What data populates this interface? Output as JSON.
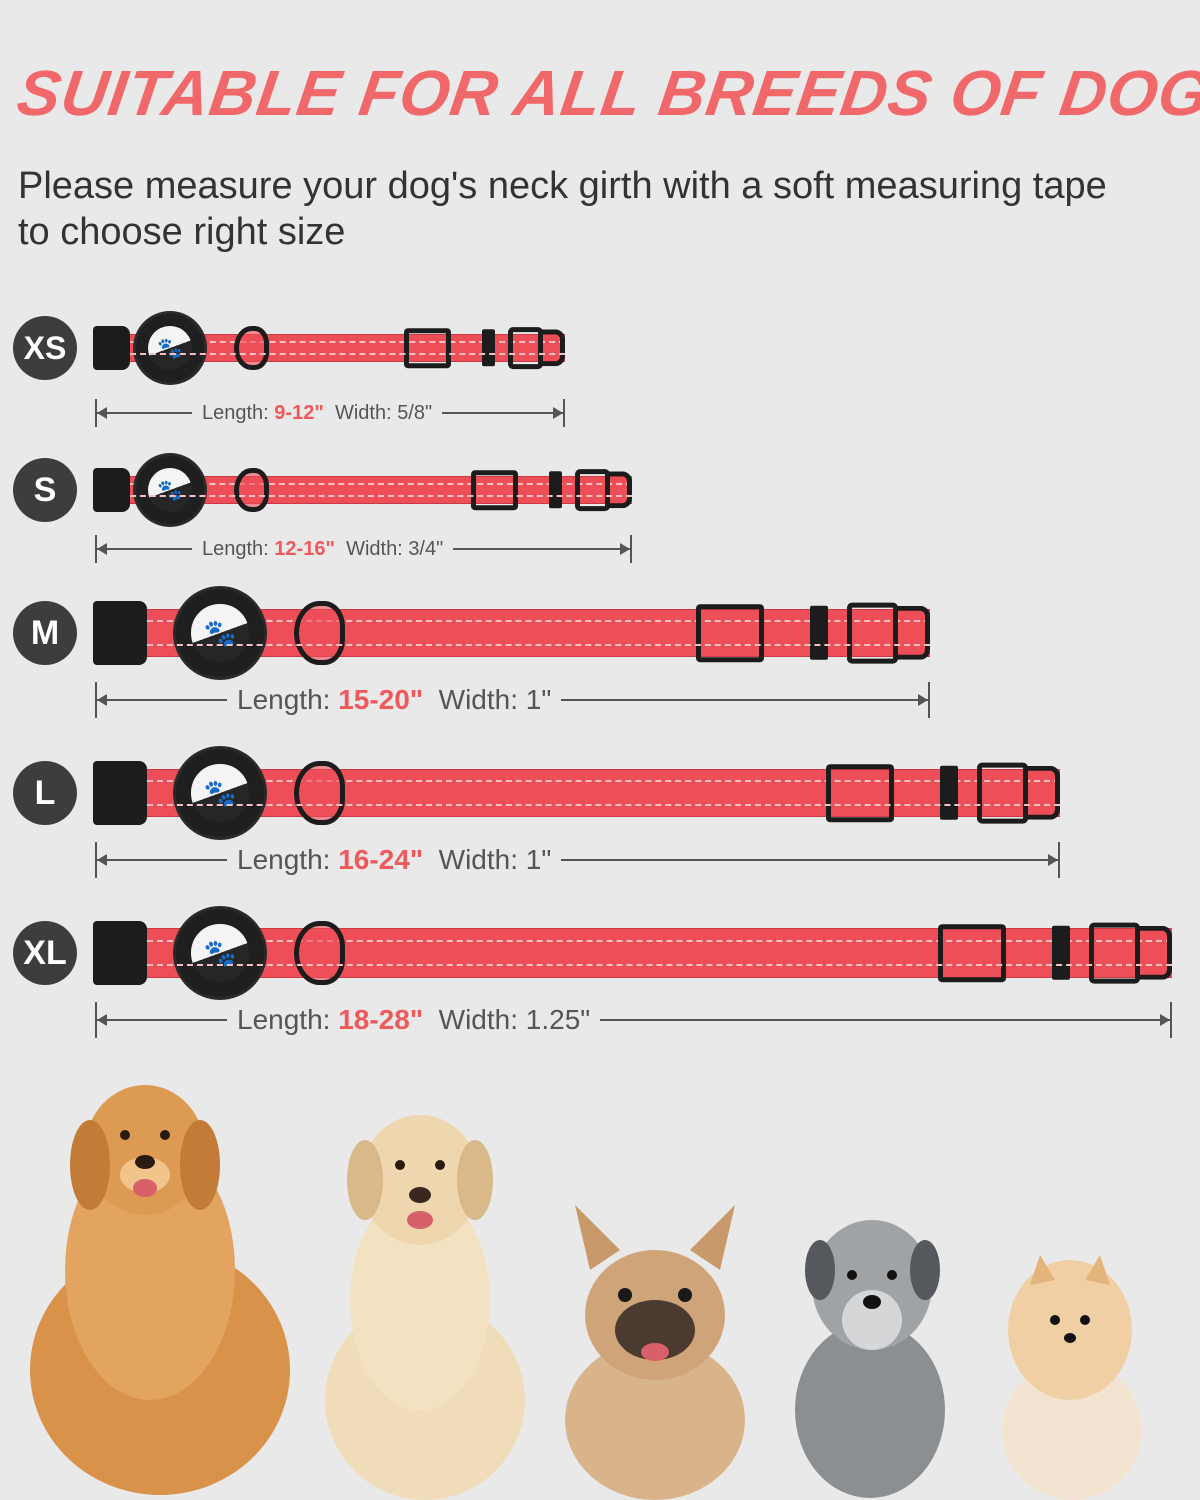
{
  "title": "SUITABLE FOR ALL BREEDS OF DOGS",
  "subtitle": "Please measure your dog's neck girth with a soft measuring tape to choose right size",
  "colors": {
    "accent": "#ee5a5c",
    "strap": "#ee4e58",
    "badge": "#3d3d3d",
    "background": "#e9e9e9"
  },
  "sizes": [
    {
      "label": "XS",
      "length_label": "Length:",
      "length": "9-12\"",
      "width_label": "Width:",
      "width": "5/8\""
    },
    {
      "label": "S",
      "length_label": "Length:",
      "length": "12-16\"",
      "width_label": "Width:",
      "width": "3/4\""
    },
    {
      "label": "M",
      "length_label": "Length:",
      "length": "15-20\"",
      "width_label": "Width:",
      "width": "1\""
    },
    {
      "label": "L",
      "length_label": "Length:",
      "length": "16-24\"",
      "width_label": "Width:",
      "width": "1\""
    },
    {
      "label": "XL",
      "length_label": "Length:",
      "length": "18-28\"",
      "width_label": "Width:",
      "width": "1.25\""
    }
  ],
  "dogs": [
    "golden-retriever",
    "labrador",
    "french-bulldog",
    "schnauzer",
    "pomeranian"
  ]
}
